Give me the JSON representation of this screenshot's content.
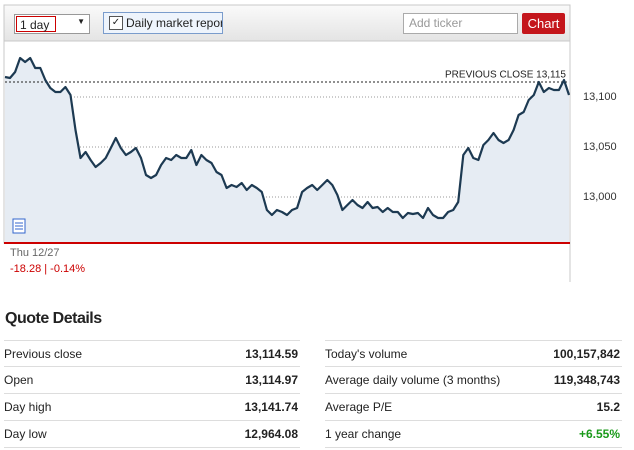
{
  "toolbar": {
    "range": "1 day",
    "checkbox_label": "Daily market report",
    "ticker_placeholder": "Add ticker",
    "button": "Chart"
  },
  "chart_data": {
    "type": "line",
    "xlabel": "Thu 12/27",
    "color": "#1d3a52",
    "fill": "#e6ecf3",
    "values": [
      13120,
      13119,
      13125,
      13139,
      13135,
      13139,
      13129,
      13129,
      13117,
      13109,
      13105,
      13105,
      13110,
      13102,
      13067,
      13039,
      13045,
      13037,
      13030,
      13034,
      13039,
      13049,
      13059,
      13049,
      13042,
      13045,
      13049,
      13039,
      13022,
      13019,
      13022,
      13032,
      13039,
      13037,
      13042,
      13039,
      13039,
      13047,
      13032,
      13042,
      13037,
      13034,
      13025,
      13022,
      13009,
      13012,
      13010,
      13014,
      13007,
      13012,
      13009,
      13005,
      12987,
      12982,
      12987,
      12985,
      12982,
      12987,
      12989,
      13005,
      13009,
      13012,
      13007,
      13012,
      13017,
      13012,
      13002,
      12987,
      12992,
      12997,
      12992,
      12989,
      12995,
      12989,
      12990,
      12985,
      12989,
      12985,
      12985,
      12979,
      12984,
      12983,
      12984,
      12979,
      12989,
      12982,
      12979,
      12979,
      12985,
      12987,
      12995,
      13042,
      13049,
      13039,
      13037,
      13052,
      13057,
      13064,
      13057,
      13054,
      13057,
      13067,
      13082,
      13085,
      13097,
      13102,
      13115,
      13105,
      13109,
      13107,
      13107,
      13117,
      13102
    ],
    "ylim": [
      12954,
      13155
    ],
    "yticks": [
      {
        "value": 13000,
        "label": "13,000"
      },
      {
        "value": 13050,
        "label": "13,050"
      },
      {
        "value": 13100,
        "label": "13,100"
      }
    ],
    "grid": true,
    "reference_line": {
      "value": 13115,
      "label": "PREVIOUS CLOSE 13,115"
    }
  },
  "change": "-18.28 | -0.14%",
  "quote_details": {
    "title": "Quote Details",
    "left": [
      [
        "Previous close",
        "13,114.59"
      ],
      [
        "Open",
        "13,114.97"
      ],
      [
        "Day high",
        "13,141.74"
      ],
      [
        "Day low",
        "12,964.08"
      ]
    ],
    "right": [
      [
        "Today's volume",
        "100,157,842"
      ],
      [
        "Average daily volume (3 months)",
        "119,348,743"
      ],
      [
        "Average P/E",
        "15.2"
      ],
      [
        "1 year change",
        "+6.55%"
      ]
    ]
  }
}
